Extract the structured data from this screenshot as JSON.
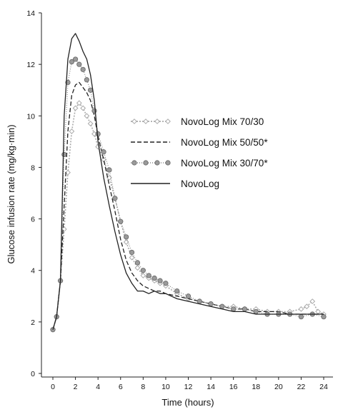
{
  "chart_data": {
    "type": "line",
    "xlabel": "Time (hours)",
    "ylabel": "Glucose infusion rate (mg/kg·min)",
    "xlim": [
      0,
      24
    ],
    "ylim": [
      0,
      14
    ],
    "xticks": [
      0,
      2,
      4,
      6,
      8,
      10,
      12,
      14,
      16,
      18,
      20,
      22,
      24
    ],
    "yticks": [
      0,
      2,
      4,
      6,
      8,
      10,
      12,
      14
    ],
    "grid": false,
    "legend_position": "right",
    "series": [
      {
        "name": "NovoLog Mix 70/30",
        "style": "light-dotted-diamond",
        "color": "#aaaaaa",
        "x": [
          0,
          0.33,
          0.67,
          1,
          1.33,
          1.67,
          2,
          2.33,
          2.67,
          3,
          3.33,
          3.67,
          4,
          4.5,
          5,
          5.5,
          6,
          6.5,
          7,
          7.5,
          8,
          8.5,
          9,
          9.5,
          10,
          11,
          12,
          13,
          14,
          15,
          16,
          17,
          18,
          19,
          20,
          21,
          22,
          22.5,
          23,
          23.5,
          24
        ],
        "y": [
          1.7,
          2.2,
          3.6,
          5.6,
          7.8,
          9.4,
          10.3,
          10.5,
          10.3,
          10.0,
          9.7,
          9.3,
          8.8,
          8.3,
          7.6,
          6.8,
          5.9,
          5.1,
          4.5,
          4.1,
          3.8,
          3.7,
          3.6,
          3.5,
          3.4,
          3.1,
          2.9,
          2.8,
          2.7,
          2.6,
          2.6,
          2.5,
          2.5,
          2.4,
          2.4,
          2.4,
          2.5,
          2.6,
          2.8,
          2.4,
          2.3
        ]
      },
      {
        "name": "NovoLog Mix 50/50*",
        "style": "dashed",
        "color": "#222222",
        "x": [
          0,
          0.33,
          0.67,
          1,
          1.33,
          1.67,
          2,
          2.33,
          2.67,
          3,
          3.33,
          3.67,
          4,
          4.5,
          5,
          5.5,
          6,
          6.5,
          7,
          7.5,
          8,
          8.5,
          9,
          9.5,
          10,
          11,
          12,
          13,
          14,
          15,
          16,
          17,
          18,
          19,
          20,
          21,
          22,
          23,
          24
        ],
        "y": [
          1.7,
          2.2,
          3.6,
          6.5,
          9.4,
          10.8,
          11.2,
          11.3,
          11.1,
          10.9,
          10.6,
          10.0,
          9.2,
          8.3,
          7.3,
          6.3,
          5.2,
          4.4,
          3.9,
          3.6,
          3.4,
          3.3,
          3.2,
          3.2,
          3.1,
          3.0,
          2.9,
          2.8,
          2.7,
          2.6,
          2.5,
          2.5,
          2.4,
          2.4,
          2.4,
          2.3,
          2.3,
          2.3,
          2.3
        ]
      },
      {
        "name": "NovoLog Mix 30/70*",
        "style": "grey-circle-markers",
        "color": "#888888",
        "x": [
          0,
          0.33,
          0.67,
          1,
          1.33,
          1.67,
          2,
          2.33,
          2.67,
          3,
          3.33,
          3.67,
          4,
          4.5,
          5,
          5.5,
          6,
          6.5,
          7,
          7.5,
          8,
          8.5,
          9,
          9.5,
          10,
          11,
          12,
          13,
          14,
          15,
          16,
          17,
          18,
          19,
          20,
          21,
          22,
          23,
          24
        ],
        "y": [
          1.7,
          2.2,
          3.6,
          8.5,
          11.3,
          12.1,
          12.2,
          12.0,
          11.8,
          11.4,
          11.0,
          10.2,
          9.3,
          8.6,
          7.9,
          6.8,
          5.9,
          5.3,
          4.7,
          4.3,
          4.0,
          3.8,
          3.7,
          3.6,
          3.5,
          3.2,
          3.0,
          2.8,
          2.7,
          2.6,
          2.5,
          2.5,
          2.4,
          2.3,
          2.3,
          2.3,
          2.2,
          2.3,
          2.2
        ]
      },
      {
        "name": "NovoLog",
        "style": "solid",
        "color": "#222222",
        "x": [
          0,
          0.33,
          0.67,
          1,
          1.33,
          1.67,
          2,
          2.33,
          2.67,
          3,
          3.33,
          3.67,
          4,
          4.5,
          5,
          5.5,
          6,
          6.5,
          7,
          7.5,
          8,
          8.5,
          9,
          9.5,
          10,
          11,
          12,
          13,
          14,
          15,
          16,
          17,
          18,
          19,
          20,
          21,
          22,
          23,
          24
        ],
        "y": [
          1.7,
          2.2,
          3.6,
          10.0,
          12.2,
          13.0,
          13.2,
          12.9,
          12.5,
          12.2,
          11.6,
          10.6,
          9.0,
          7.6,
          6.5,
          5.5,
          4.6,
          3.9,
          3.5,
          3.2,
          3.2,
          3.1,
          3.2,
          3.1,
          3.1,
          2.9,
          2.8,
          2.7,
          2.6,
          2.5,
          2.4,
          2.4,
          2.3,
          2.3,
          2.3,
          2.3,
          2.3,
          2.3,
          2.3
        ]
      }
    ]
  }
}
